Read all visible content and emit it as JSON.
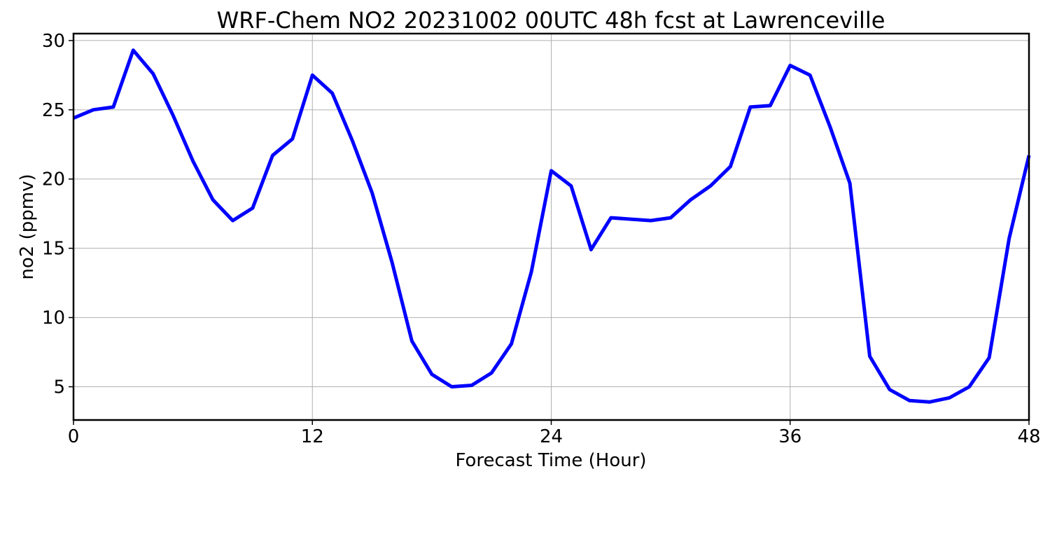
{
  "chart_data": {
    "type": "line",
    "title": "WRF-Chem NO2  20231002 00UTC 48h fcst at Lawrenceville",
    "xlabel": "Forecast Time (Hour)",
    "ylabel": "no2  (ppmv)",
    "xlim": [
      0,
      48
    ],
    "ylim": [
      2.6,
      30.5
    ],
    "xticks": [
      0,
      12,
      24,
      36,
      48
    ],
    "xtick_labels": [
      "0",
      "12",
      "24",
      "36",
      "48"
    ],
    "yticks": [
      5,
      10,
      15,
      20,
      25,
      30
    ],
    "ytick_labels": [
      "5",
      "10",
      "15",
      "20",
      "25",
      "30"
    ],
    "grid": true,
    "legend": false,
    "series": [
      {
        "color": "#0000ff",
        "x": [
          0,
          1,
          2,
          3,
          4,
          5,
          6,
          7,
          8,
          9,
          10,
          11,
          12,
          13,
          14,
          15,
          16,
          17,
          18,
          19,
          20,
          21,
          22,
          23,
          24,
          25,
          26,
          27,
          28,
          29,
          30,
          31,
          32,
          33,
          34,
          35,
          36,
          37,
          38,
          39,
          40,
          41,
          42,
          43,
          44,
          45,
          46,
          47,
          48
        ],
        "y": [
          24.4,
          25.0,
          25.2,
          29.3,
          27.6,
          24.6,
          21.3,
          18.5,
          17.0,
          17.9,
          21.7,
          22.9,
          27.5,
          26.2,
          22.8,
          19.0,
          14.0,
          8.3,
          5.9,
          5.0,
          5.1,
          6.0,
          8.1,
          13.3,
          20.6,
          19.5,
          14.9,
          17.2,
          17.1,
          17.0,
          17.2,
          18.5,
          19.5,
          20.9,
          25.2,
          25.3,
          28.2,
          27.5,
          23.8,
          19.7,
          7.2,
          4.8,
          4.0,
          3.9,
          4.2,
          5.0,
          7.1,
          15.7,
          21.7
        ]
      }
    ]
  }
}
